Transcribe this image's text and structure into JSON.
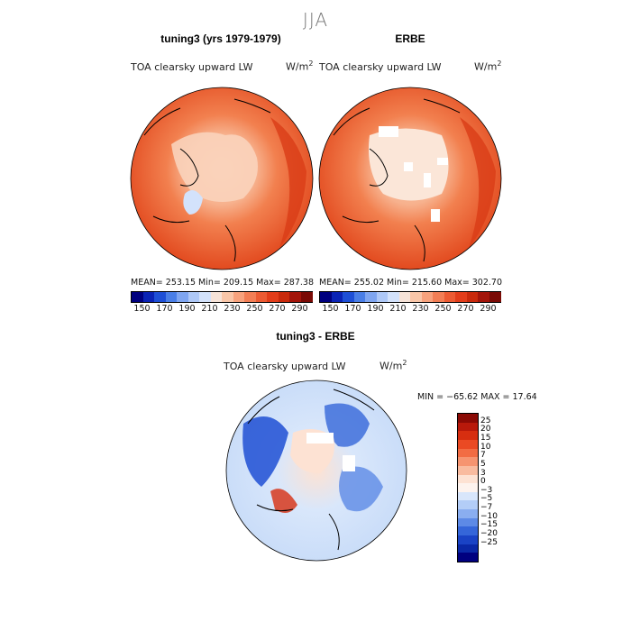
{
  "figure": {
    "season": "JJA",
    "panels": [
      {
        "title": "tuning3 (yrs 1979-1979)",
        "variable": "TOA clearsky upward LW",
        "units_base": "W/m",
        "units_exp": "2",
        "stats": "MEAN= 253.15   Min= 209.15   Max= 287.38"
      },
      {
        "title": "ERBE",
        "variable": "TOA clearsky upward LW",
        "units_base": "W/m",
        "units_exp": "2",
        "stats": "MEAN= 255.02   Min= 215.60   Max= 302.70"
      },
      {
        "title": "tuning3 - ERBE",
        "variable": "TOA clearsky upward LW",
        "units_base": "W/m",
        "units_exp": "2",
        "stats": "MIN = −65.62 MAX =  17.64"
      }
    ],
    "colorbar_abs": {
      "labels": [
        "150",
        "170",
        "190",
        "210",
        "230",
        "250",
        "270",
        "290"
      ],
      "colors": [
        "#00007f",
        "#0a23b5",
        "#1e4fd6",
        "#4a7ee6",
        "#7fa5f0",
        "#aec8f7",
        "#d3e2fb",
        "#f6e3d8",
        "#f9c6a8",
        "#f7a27d",
        "#f27e55",
        "#ec5b33",
        "#e23d1a",
        "#c92a0c",
        "#a3150a",
        "#7a0a05"
      ]
    },
    "colorbar_diff": {
      "labels": [
        "25",
        "20",
        "15",
        "10",
        "7",
        "5",
        "3",
        "0",
        "−3",
        "−5",
        "−7",
        "−10",
        "−15",
        "−20",
        "−25"
      ],
      "colors": [
        "#8b0a05",
        "#b8190b",
        "#d72e10",
        "#ea4a23",
        "#f26c43",
        "#f69470",
        "#f9bb9f",
        "#fde2d3",
        "#fdf3ee",
        "#d8e6fb",
        "#b3cdf7",
        "#8aaef0",
        "#5d8ae6",
        "#3566d9",
        "#1a43c5",
        "#0a28a6",
        "#00007f"
      ]
    }
  },
  "chart_data": [
    {
      "type": "heatmap",
      "title": "tuning3 (yrs 1979-1979)",
      "subtitle": "TOA clearsky upward LW",
      "units": "W/m2",
      "season": "JJA",
      "stats": {
        "mean": 253.15,
        "min": 209.15,
        "max": 287.38
      },
      "colorbar_ticks": [
        150,
        170,
        190,
        210,
        230,
        250,
        270,
        290
      ]
    },
    {
      "type": "heatmap",
      "title": "ERBE",
      "subtitle": "TOA clearsky upward LW",
      "units": "W/m2",
      "season": "JJA",
      "stats": {
        "mean": 255.02,
        "min": 215.6,
        "max": 302.7
      },
      "colorbar_ticks": [
        150,
        170,
        190,
        210,
        230,
        250,
        270,
        290
      ]
    },
    {
      "type": "heatmap",
      "title": "tuning3 - ERBE",
      "subtitle": "TOA clearsky upward LW",
      "units": "W/m2",
      "season": "JJA",
      "stats": {
        "min": -65.62,
        "max": 17.64
      },
      "colorbar_ticks": [
        25,
        20,
        15,
        10,
        7,
        5,
        3,
        0,
        -3,
        -5,
        -7,
        -10,
        -15,
        -20,
        -25
      ]
    }
  ]
}
